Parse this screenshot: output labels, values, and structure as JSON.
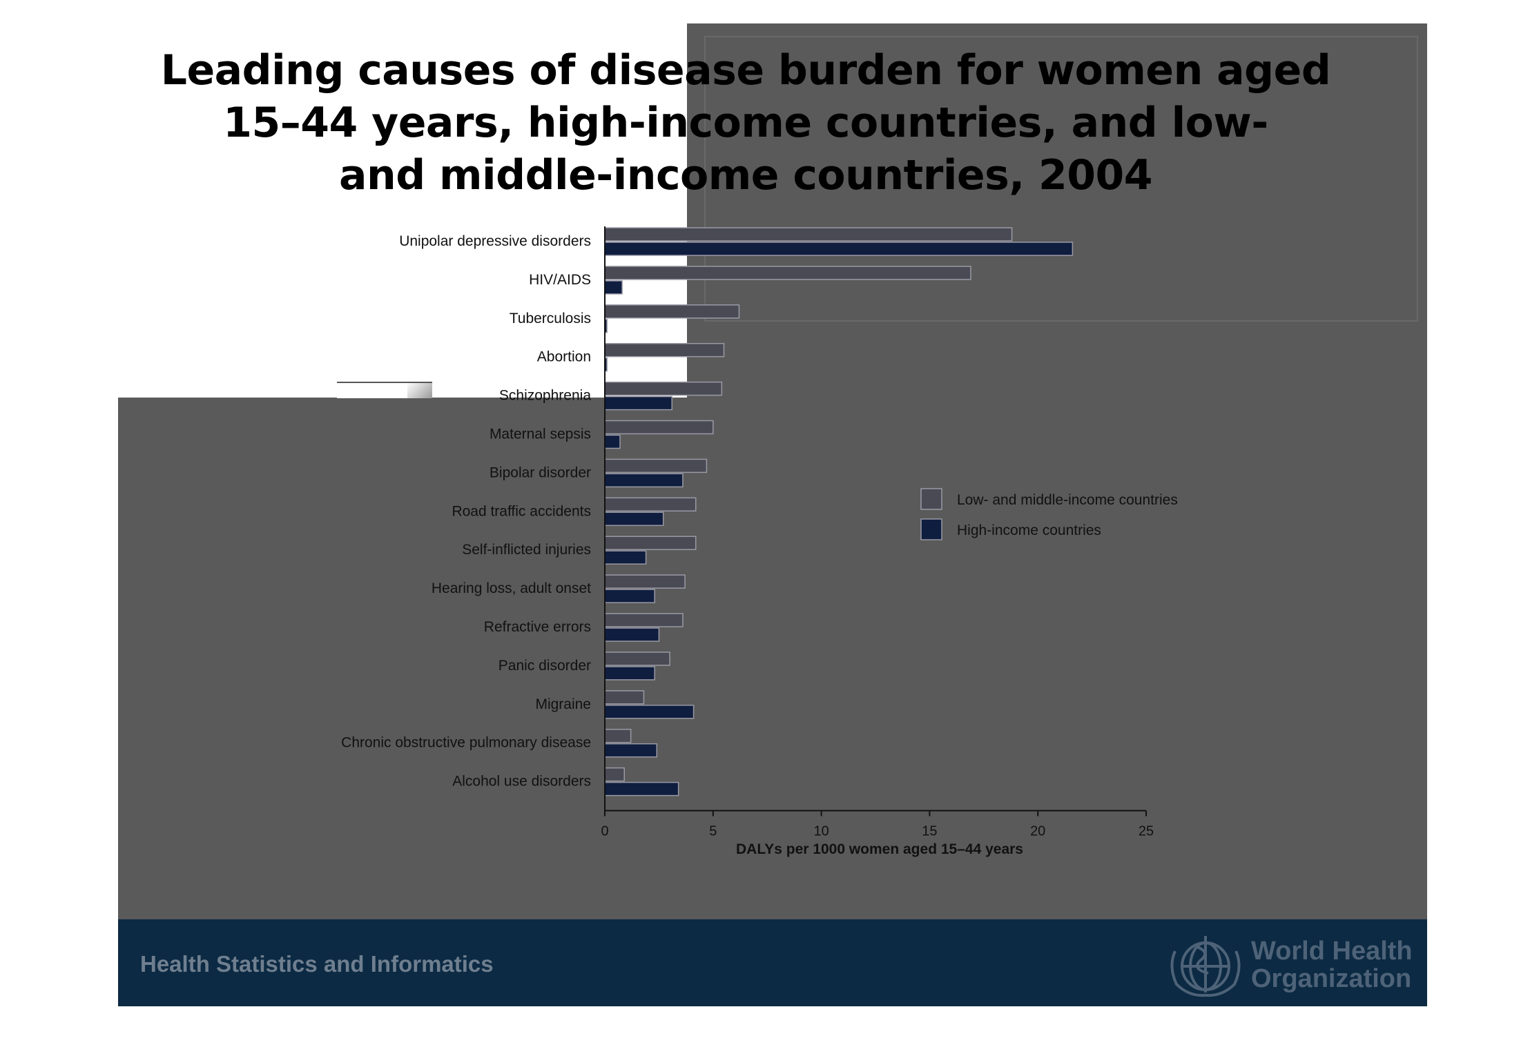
{
  "title": "Leading causes of disease burden for women aged\n15–44 years, high-income countries, and low-\nand middle-income countries, 2004",
  "footer": {
    "text": "Health Statistics and Informatics",
    "logo_line1": "World Health",
    "logo_line2": "Organization"
  },
  "colors": {
    "low_middle": "#4a4a55",
    "high": "#0f1d3f",
    "slide_bg": "#5a5a5a",
    "footer_bg": "#0c2a43"
  },
  "chart_data": {
    "type": "bar",
    "orientation": "horizontal",
    "categories": [
      "Unipolar depressive disorders",
      "HIV/AIDS",
      "Tuberculosis",
      "Abortion",
      "Schizophrenia",
      "Maternal sepsis",
      "Bipolar disorder",
      "Road traffic accidents",
      "Self-inflicted injuries",
      "Hearing loss, adult onset",
      "Refractive errors",
      "Panic disorder",
      "Migraine",
      "Chronic obstructive pulmonary disease",
      "Alcohol use disorders"
    ],
    "series": [
      {
        "name": "Low- and middle-income countries",
        "values": [
          18.8,
          16.9,
          6.2,
          5.5,
          5.4,
          5.0,
          4.7,
          4.2,
          4.2,
          3.7,
          3.6,
          3.0,
          1.8,
          1.2,
          0.9
        ]
      },
      {
        "name": "High-income countries",
        "values": [
          21.6,
          0.8,
          0.1,
          0.1,
          3.1,
          0.7,
          3.6,
          2.7,
          1.9,
          2.3,
          2.5,
          2.3,
          4.1,
          2.4,
          3.4
        ]
      }
    ],
    "xlabel": "DALYs per 1000 women aged 15–44 years",
    "ylabel": "",
    "xlim": [
      0,
      25
    ],
    "xticks": [
      "0",
      "5",
      "10",
      "15",
      "20",
      "25"
    ],
    "legend": {
      "position": "right",
      "entries": [
        "Low- and middle-income countries",
        "High-income countries"
      ]
    },
    "grid": false
  }
}
